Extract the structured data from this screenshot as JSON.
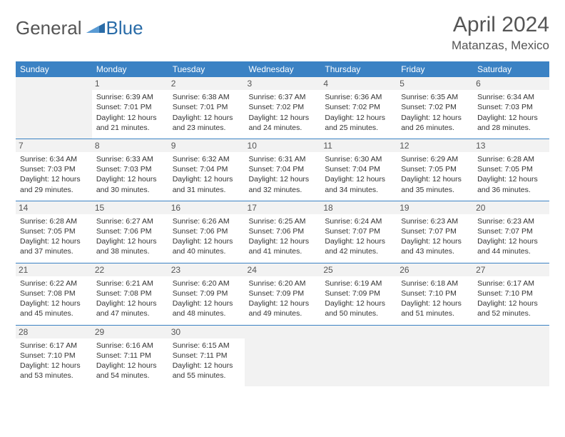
{
  "logo": {
    "general": "General",
    "blue": "Blue"
  },
  "title": "April 2024",
  "location": "Matanzas, Mexico",
  "colors": {
    "header_bg": "#3b82c4",
    "header_text": "#ffffff",
    "daynum_bg": "#f2f2f2",
    "empty_bg": "#f2f2f2",
    "border": "#3b82c4",
    "text": "#333333",
    "logo_gray": "#555555",
    "logo_blue": "#2a6ca8"
  },
  "weekdays": [
    "Sunday",
    "Monday",
    "Tuesday",
    "Wednesday",
    "Thursday",
    "Friday",
    "Saturday"
  ],
  "firstWeekday": 1,
  "daysInMonth": 30,
  "days": {
    "1": {
      "sunrise": "6:39 AM",
      "sunset": "7:01 PM",
      "dh": 12,
      "dm": 21
    },
    "2": {
      "sunrise": "6:38 AM",
      "sunset": "7:01 PM",
      "dh": 12,
      "dm": 23
    },
    "3": {
      "sunrise": "6:37 AM",
      "sunset": "7:02 PM",
      "dh": 12,
      "dm": 24
    },
    "4": {
      "sunrise": "6:36 AM",
      "sunset": "7:02 PM",
      "dh": 12,
      "dm": 25
    },
    "5": {
      "sunrise": "6:35 AM",
      "sunset": "7:02 PM",
      "dh": 12,
      "dm": 26
    },
    "6": {
      "sunrise": "6:34 AM",
      "sunset": "7:03 PM",
      "dh": 12,
      "dm": 28
    },
    "7": {
      "sunrise": "6:34 AM",
      "sunset": "7:03 PM",
      "dh": 12,
      "dm": 29
    },
    "8": {
      "sunrise": "6:33 AM",
      "sunset": "7:03 PM",
      "dh": 12,
      "dm": 30
    },
    "9": {
      "sunrise": "6:32 AM",
      "sunset": "7:04 PM",
      "dh": 12,
      "dm": 31
    },
    "10": {
      "sunrise": "6:31 AM",
      "sunset": "7:04 PM",
      "dh": 12,
      "dm": 32
    },
    "11": {
      "sunrise": "6:30 AM",
      "sunset": "7:04 PM",
      "dh": 12,
      "dm": 34
    },
    "12": {
      "sunrise": "6:29 AM",
      "sunset": "7:05 PM",
      "dh": 12,
      "dm": 35
    },
    "13": {
      "sunrise": "6:28 AM",
      "sunset": "7:05 PM",
      "dh": 12,
      "dm": 36
    },
    "14": {
      "sunrise": "6:28 AM",
      "sunset": "7:05 PM",
      "dh": 12,
      "dm": 37
    },
    "15": {
      "sunrise": "6:27 AM",
      "sunset": "7:06 PM",
      "dh": 12,
      "dm": 38
    },
    "16": {
      "sunrise": "6:26 AM",
      "sunset": "7:06 PM",
      "dh": 12,
      "dm": 40
    },
    "17": {
      "sunrise": "6:25 AM",
      "sunset": "7:06 PM",
      "dh": 12,
      "dm": 41
    },
    "18": {
      "sunrise": "6:24 AM",
      "sunset": "7:07 PM",
      "dh": 12,
      "dm": 42
    },
    "19": {
      "sunrise": "6:23 AM",
      "sunset": "7:07 PM",
      "dh": 12,
      "dm": 43
    },
    "20": {
      "sunrise": "6:23 AM",
      "sunset": "7:07 PM",
      "dh": 12,
      "dm": 44
    },
    "21": {
      "sunrise": "6:22 AM",
      "sunset": "7:08 PM",
      "dh": 12,
      "dm": 45
    },
    "22": {
      "sunrise": "6:21 AM",
      "sunset": "7:08 PM",
      "dh": 12,
      "dm": 47
    },
    "23": {
      "sunrise": "6:20 AM",
      "sunset": "7:09 PM",
      "dh": 12,
      "dm": 48
    },
    "24": {
      "sunrise": "6:20 AM",
      "sunset": "7:09 PM",
      "dh": 12,
      "dm": 49
    },
    "25": {
      "sunrise": "6:19 AM",
      "sunset": "7:09 PM",
      "dh": 12,
      "dm": 50
    },
    "26": {
      "sunrise": "6:18 AM",
      "sunset": "7:10 PM",
      "dh": 12,
      "dm": 51
    },
    "27": {
      "sunrise": "6:17 AM",
      "sunset": "7:10 PM",
      "dh": 12,
      "dm": 52
    },
    "28": {
      "sunrise": "6:17 AM",
      "sunset": "7:10 PM",
      "dh": 12,
      "dm": 53
    },
    "29": {
      "sunrise": "6:16 AM",
      "sunset": "7:11 PM",
      "dh": 12,
      "dm": 54
    },
    "30": {
      "sunrise": "6:15 AM",
      "sunset": "7:11 PM",
      "dh": 12,
      "dm": 55
    }
  },
  "labels": {
    "sunrise": "Sunrise:",
    "sunset": "Sunset:",
    "daylight_prefix": "Daylight:",
    "hours_word": "hours",
    "and_word": "and",
    "minutes_word": "minutes."
  }
}
